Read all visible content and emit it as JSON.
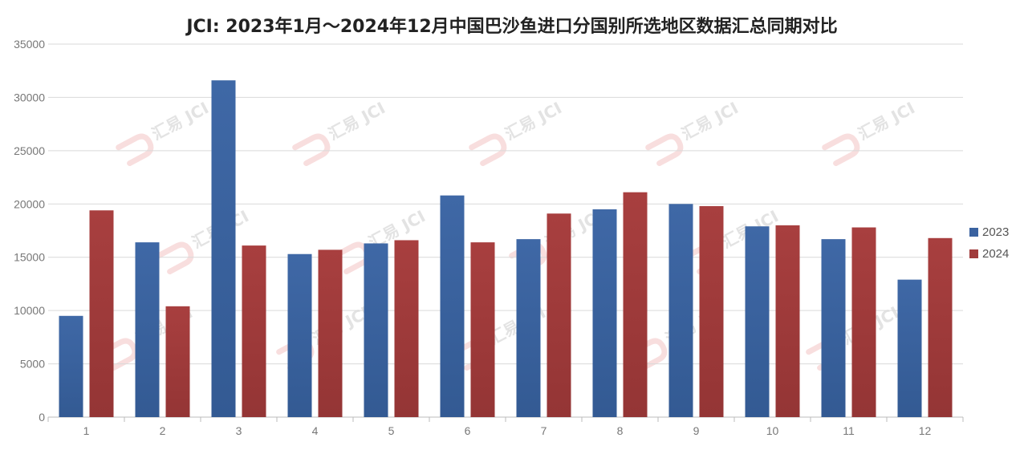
{
  "chart_data": {
    "type": "bar",
    "title": "JCI: 2023年1月～2024年12月中国巴沙鱼进口分国别所选地区数据汇总同期对比",
    "categories": [
      "1",
      "2",
      "3",
      "4",
      "5",
      "6",
      "7",
      "8",
      "9",
      "10",
      "11",
      "12"
    ],
    "series": [
      {
        "name": "2023",
        "color": "#3a62a0",
        "values": [
          9500,
          16400,
          31600,
          15300,
          16300,
          20800,
          16700,
          19500,
          20000,
          17900,
          16700,
          12900
        ]
      },
      {
        "name": "2024",
        "color": "#a03b3b",
        "values": [
          19400,
          10400,
          16100,
          15700,
          16600,
          16400,
          19100,
          21100,
          19800,
          18000,
          17800,
          16800
        ]
      }
    ],
    "ylim": [
      0,
      35000
    ],
    "yticks": [
      0,
      5000,
      10000,
      15000,
      20000,
      25000,
      30000,
      35000
    ],
    "grid": true,
    "legend_position": "right"
  },
  "watermark": {
    "text": "汇易 JCI"
  }
}
